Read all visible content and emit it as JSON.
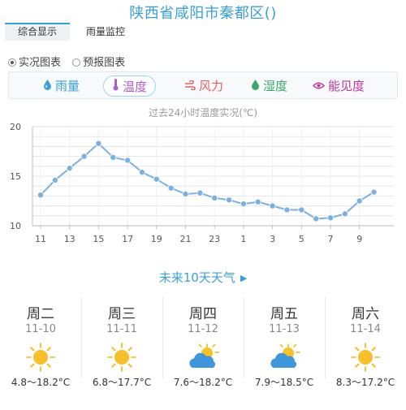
{
  "title": "陕西省咸阳市秦都区()",
  "tabs": [
    {
      "label": "综合显示",
      "active": true
    },
    {
      "label": "雨量监控",
      "active": false
    }
  ],
  "radios": [
    {
      "label": "实况图表",
      "checked": true
    },
    {
      "label": "预报图表",
      "checked": false
    }
  ],
  "metrics": [
    {
      "label": "雨量",
      "icon": "raindrop-icon",
      "color": "#3a9fd8",
      "active": false
    },
    {
      "label": "温度",
      "icon": "thermometer-icon",
      "color": "#b05ec8",
      "active": true
    },
    {
      "label": "风力",
      "icon": "wind-icon",
      "color": "#e26060",
      "active": false
    },
    {
      "label": "湿度",
      "icon": "humidity-drop-icon",
      "color": "#3aa86a",
      "active": false
    },
    {
      "label": "能见度",
      "icon": "eye-icon",
      "color": "#c03a9e",
      "active": false
    }
  ],
  "chart_data": {
    "type": "line",
    "title": "过去24小时温度实况(℃)",
    "ylim": [
      10,
      20
    ],
    "yticks": [
      "20",
      "15",
      "10"
    ],
    "grid": true,
    "line_color": "#7bb1de",
    "xticks": [
      "11",
      "13",
      "15",
      "17",
      "19",
      "21",
      "23",
      "1",
      "3",
      "5",
      "7",
      "9"
    ],
    "x": [
      "11",
      "12",
      "13",
      "14",
      "15",
      "16",
      "17",
      "18",
      "19",
      "20",
      "21",
      "22",
      "23",
      "0",
      "1",
      "2",
      "3",
      "4",
      "5",
      "6",
      "7",
      "8",
      "9",
      "10"
    ],
    "values": [
      13.1,
      14.6,
      15.8,
      17.0,
      18.3,
      16.9,
      16.6,
      15.4,
      14.7,
      13.8,
      13.2,
      13.3,
      12.8,
      12.6,
      12.2,
      12.4,
      12.0,
      11.6,
      11.6,
      10.7,
      10.8,
      11.2,
      12.5,
      13.4
    ]
  },
  "forecast": {
    "title": "未来10天天气",
    "arrow": "▶",
    "days": [
      {
        "name": "周二",
        "date": "11-10",
        "icon": "sun-icon",
        "range": "4.8～18.2°C"
      },
      {
        "name": "周三",
        "date": "11-11",
        "icon": "sun-icon",
        "range": "6.8～17.7°C"
      },
      {
        "name": "周四",
        "date": "11-12",
        "icon": "sun-cloud-icon",
        "range": "7.6～18.2°C"
      },
      {
        "name": "周五",
        "date": "11-13",
        "icon": "sun-cloud-icon",
        "range": "7.9～18.5°C"
      },
      {
        "name": "周六",
        "date": "11-14",
        "icon": "sun-icon",
        "range": "8.3～17.2°C"
      }
    ]
  }
}
